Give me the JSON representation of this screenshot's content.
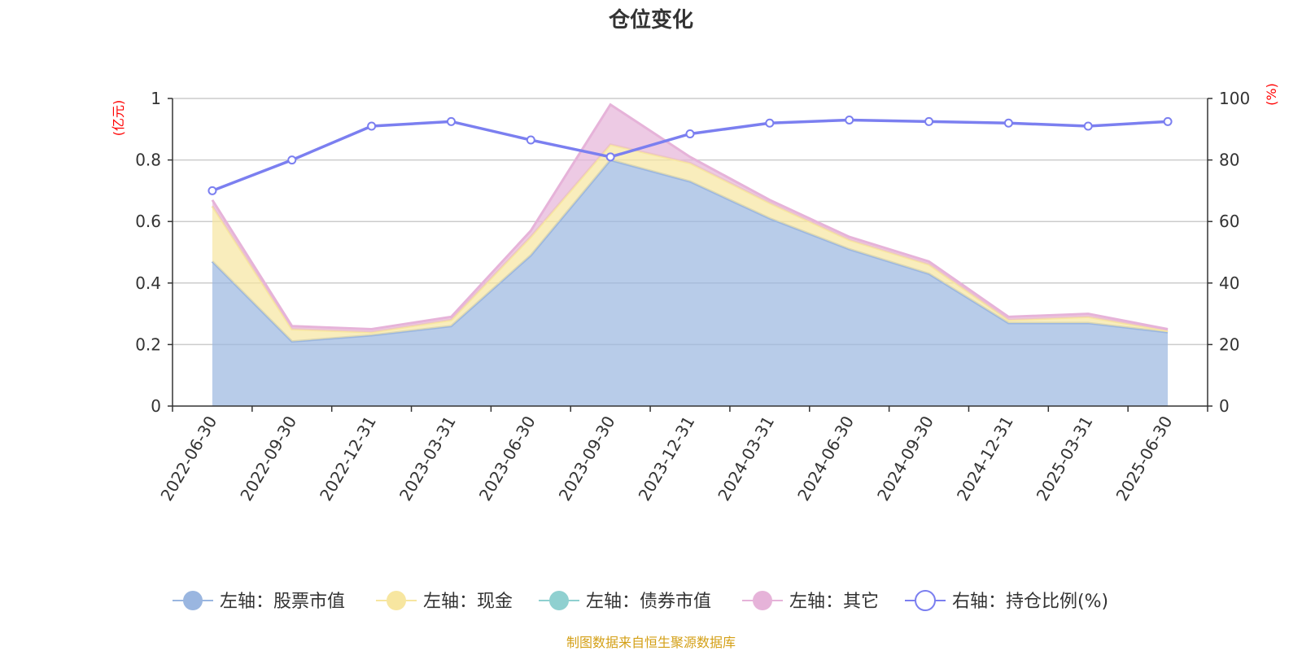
{
  "chart_data": {
    "type": "area",
    "title": "仓位变化",
    "categories": [
      "2022-06-30",
      "2022-09-30",
      "2022-12-31",
      "2023-03-31",
      "2023-06-30",
      "2023-09-30",
      "2023-12-31",
      "2024-03-31",
      "2024-06-30",
      "2024-09-30",
      "2024-12-31",
      "2025-03-31",
      "2025-06-30"
    ],
    "left_axis": {
      "unit": "(亿元)",
      "ylim": [
        0,
        1
      ],
      "ticks": [
        "0",
        "0.2",
        "0.4",
        "0.6",
        "0.8",
        "1"
      ]
    },
    "right_axis": {
      "unit": "(%)",
      "ylim": [
        0,
        100
      ],
      "ticks": [
        "0",
        "20",
        "40",
        "60",
        "80",
        "100"
      ]
    },
    "series": [
      {
        "name": "左轴：股票市值",
        "axis": "left",
        "stack": true,
        "color": "#9ab6e0",
        "values": [
          0.47,
          0.21,
          0.23,
          0.26,
          0.49,
          0.8,
          0.73,
          0.61,
          0.51,
          0.43,
          0.27,
          0.27,
          0.24
        ]
      },
      {
        "name": "左轴：现金",
        "axis": "left",
        "stack": true,
        "color": "#f7e6a0",
        "values": [
          0.18,
          0.04,
          0.01,
          0.02,
          0.06,
          0.05,
          0.06,
          0.05,
          0.03,
          0.03,
          0.01,
          0.02,
          0.005
        ]
      },
      {
        "name": "左轴：债券市值",
        "axis": "left",
        "stack": true,
        "color": "#8fd0d0",
        "values": [
          0,
          0,
          0,
          0,
          0,
          0,
          0,
          0,
          0,
          0,
          0,
          0,
          0
        ]
      },
      {
        "name": "左轴：其它",
        "axis": "left",
        "stack": true,
        "color": "#e6b3d9",
        "values": [
          0.02,
          0.01,
          0.01,
          0.01,
          0.02,
          0.13,
          0.02,
          0.01,
          0.01,
          0.01,
          0.01,
          0.01,
          0.005
        ]
      },
      {
        "name": "右轴：持仓比例(%)",
        "axis": "right",
        "stack": false,
        "color": "#7b7ff0",
        "values": [
          70,
          80,
          91,
          92.5,
          86.5,
          81,
          88.5,
          92,
          93,
          92.5,
          92,
          91,
          92.5
        ]
      }
    ],
    "grid": true,
    "legend_position": "bottom",
    "source_note": "制图数据来自恒生聚源数据库"
  }
}
